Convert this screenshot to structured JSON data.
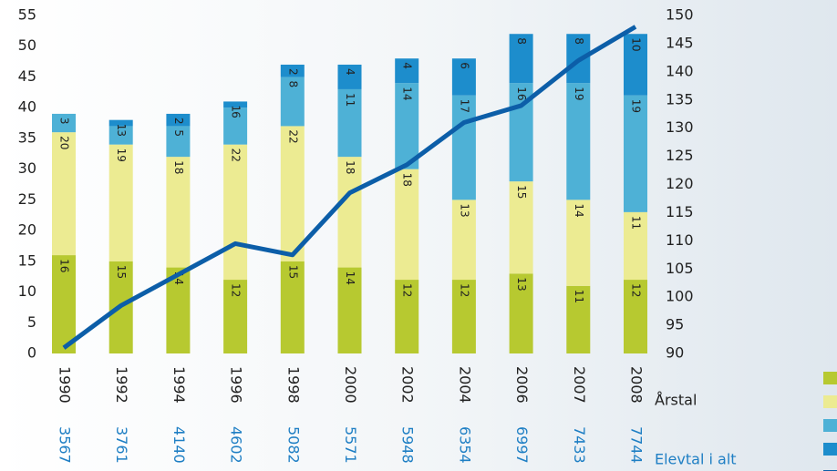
{
  "chart_data": {
    "type": "bar",
    "stacked": true,
    "categories": [
      "1990",
      "1992",
      "1994",
      "1996",
      "1998",
      "2000",
      "2002",
      "2004",
      "2006",
      "2007",
      "2008"
    ],
    "x_label": "Årstal",
    "series": [
      {
        "color": "#b7c930",
        "values": [
          16,
          15,
          14,
          12,
          15,
          14,
          12,
          12,
          13,
          11,
          12
        ]
      },
      {
        "color": "#eceb92",
        "values": [
          20,
          19,
          18,
          22,
          22,
          18,
          18,
          13,
          15,
          14,
          11
        ]
      },
      {
        "color": "#4eb1d6",
        "values": [
          3,
          3,
          5,
          6,
          8,
          11,
          14,
          17,
          16,
          19,
          19
        ]
      },
      {
        "color": "#1d8dcc",
        "values": [
          null,
          1,
          2,
          1,
          2,
          4,
          4,
          6,
          8,
          8,
          10
        ]
      },
      {
        "type": "line",
        "axis": "y2",
        "color": "#0c5ea8",
        "values": [
          91,
          98.5,
          104,
          109.5,
          107.5,
          118.5,
          123.5,
          131,
          134,
          142,
          148
        ]
      }
    ],
    "totals": {
      "label": "Elevtal i alt",
      "values": [
        3567,
        3761,
        4140,
        4602,
        5082,
        5571,
        5948,
        6354,
        6997,
        7433,
        7744
      ]
    },
    "ylim": [
      0,
      55
    ],
    "yticks": [
      0,
      5,
      10,
      15,
      20,
      25,
      30,
      35,
      40,
      45,
      50,
      55
    ],
    "y2lim": [
      90,
      150
    ],
    "y2ticks": [
      90,
      95,
      100,
      105,
      110,
      115,
      120,
      125,
      130,
      135,
      140,
      145,
      150
    ]
  }
}
